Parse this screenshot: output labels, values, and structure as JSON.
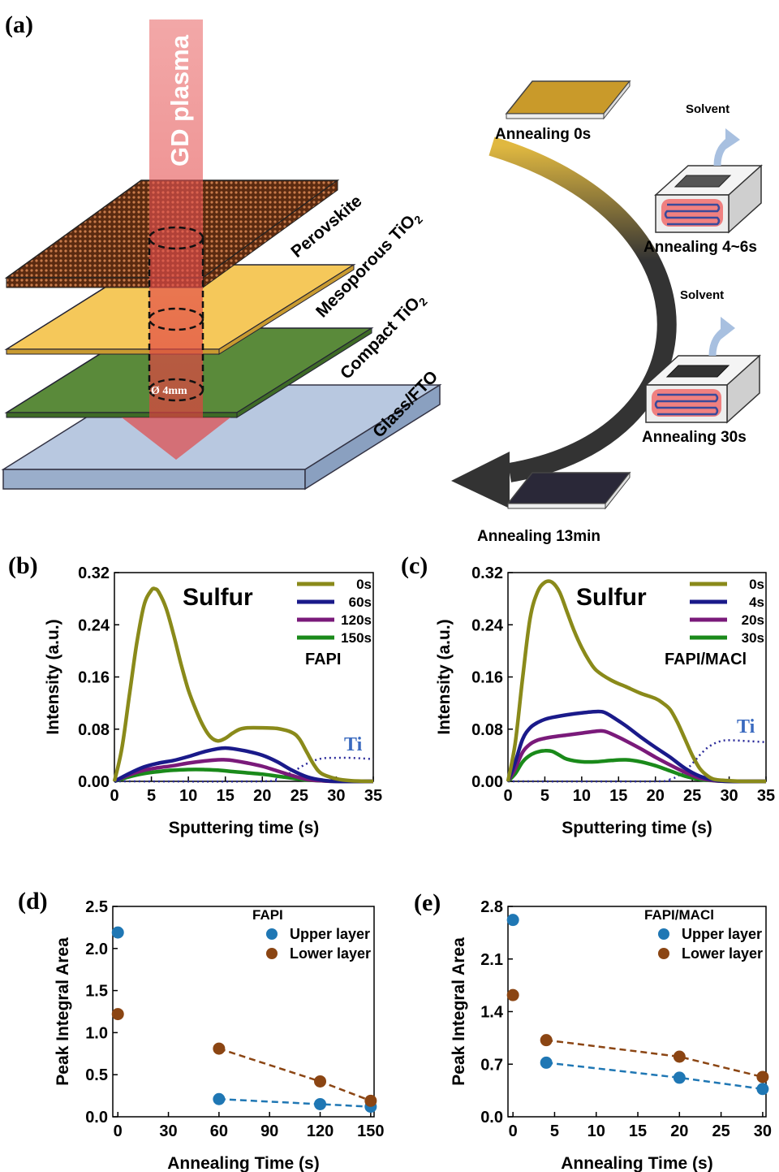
{
  "panel_a": {
    "label": "(a)",
    "plasma_label": "GD plasma",
    "diameter_label": "Ø 4mm",
    "layers": [
      "Perovskite",
      "Mesoporous TiO",
      "Compact TiO",
      "Glass/FTO"
    ],
    "layer_subscripts": [
      "",
      "2",
      "2",
      ""
    ],
    "stages": [
      "Annealing 0s",
      "Annealing 4~6s",
      "Annealing 30s",
      "Annealing 13min"
    ],
    "solvent_label": "Solvent",
    "colors": {
      "plasma": "#e05050",
      "perovskite": "#7a3d1c",
      "mesoporous": "#f5c85a",
      "compact": "#5a8a3a",
      "glass": "#b8c8e0"
    }
  },
  "chart_data": [
    {
      "id": "b",
      "label": "(b)",
      "type": "line",
      "title": "Sulfur",
      "subtitle": "FAPI",
      "xlabel": "Sputtering time (s)",
      "ylabel": "Intensity (a.u.)",
      "xlim": [
        0,
        35
      ],
      "ylim": [
        0,
        0.32
      ],
      "xticks": [
        "0",
        "5",
        "10",
        "15",
        "20",
        "25",
        "30",
        "35"
      ],
      "yticks": [
        "0.00",
        "0.08",
        "0.16",
        "0.24",
        "0.32"
      ],
      "legend_position": "top-right",
      "series": [
        {
          "name": "0s",
          "color": "#8a8a1a",
          "x": [
            0,
            1,
            2,
            3,
            4,
            5,
            5.5,
            6,
            7,
            8,
            9,
            10,
            11,
            12,
            13,
            14,
            15,
            16,
            17,
            18,
            20,
            22,
            24,
            25,
            26,
            27,
            28,
            30,
            32,
            35
          ],
          "y": [
            0.0,
            0.05,
            0.13,
            0.21,
            0.27,
            0.293,
            0.295,
            0.29,
            0.265,
            0.225,
            0.18,
            0.14,
            0.11,
            0.085,
            0.068,
            0.062,
            0.066,
            0.074,
            0.08,
            0.082,
            0.082,
            0.081,
            0.075,
            0.065,
            0.045,
            0.025,
            0.012,
            0.004,
            0.001,
            0.0
          ]
        },
        {
          "name": "60s",
          "color": "#1a1a8a",
          "x": [
            0,
            2,
            4,
            6,
            8,
            10,
            12,
            14,
            15,
            16,
            18,
            20,
            22,
            24,
            26,
            28,
            30,
            35
          ],
          "y": [
            0.0,
            0.012,
            0.022,
            0.028,
            0.032,
            0.038,
            0.045,
            0.05,
            0.051,
            0.05,
            0.046,
            0.04,
            0.03,
            0.017,
            0.007,
            0.002,
            0.0,
            0.0
          ]
        },
        {
          "name": "120s",
          "color": "#7a1a7a",
          "x": [
            0,
            2,
            4,
            6,
            8,
            10,
            12,
            14,
            15,
            16,
            18,
            20,
            22,
            24,
            26,
            28,
            30,
            35
          ],
          "y": [
            0.0,
            0.01,
            0.017,
            0.021,
            0.024,
            0.028,
            0.031,
            0.033,
            0.033,
            0.032,
            0.028,
            0.023,
            0.016,
            0.009,
            0.003,
            0.001,
            0.0,
            0.0
          ]
        },
        {
          "name": "150s",
          "color": "#1a8a1a",
          "x": [
            0,
            2,
            4,
            6,
            8,
            10,
            12,
            14,
            16,
            18,
            20,
            22,
            24,
            26,
            28,
            30,
            35
          ],
          "y": [
            0.0,
            0.007,
            0.012,
            0.015,
            0.017,
            0.018,
            0.018,
            0.017,
            0.015,
            0.013,
            0.011,
            0.008,
            0.005,
            0.002,
            0.001,
            0.0,
            0.0
          ]
        }
      ],
      "ti_curve": {
        "label": "Ti",
        "color": "#3a6abf",
        "x": [
          0,
          20,
          22,
          24,
          26,
          28,
          30,
          32,
          35
        ],
        "y": [
          0.0,
          0.0,
          0.004,
          0.014,
          0.027,
          0.035,
          0.036,
          0.036,
          0.034
        ]
      }
    },
    {
      "id": "c",
      "label": "(c)",
      "type": "line",
      "title": "Sulfur",
      "subtitle": "FAPI/MACl",
      "xlabel": "Sputtering time (s)",
      "ylabel": "Intensity (a.u.)",
      "xlim": [
        0,
        35
      ],
      "ylim": [
        0,
        0.32
      ],
      "xticks": [
        "0",
        "5",
        "10",
        "15",
        "20",
        "25",
        "30",
        "35"
      ],
      "yticks": [
        "0.00",
        "0.08",
        "0.16",
        "0.24",
        "0.32"
      ],
      "legend_position": "top-right",
      "series": [
        {
          "name": "0s",
          "color": "#8a8a1a",
          "x": [
            0,
            1,
            2,
            3,
            4,
            5,
            6,
            7,
            8,
            9,
            10,
            11,
            12,
            14,
            16,
            18,
            20,
            21,
            22,
            23,
            24,
            25,
            26,
            27,
            28,
            30,
            32,
            35
          ],
          "y": [
            0.0,
            0.06,
            0.16,
            0.25,
            0.29,
            0.305,
            0.305,
            0.29,
            0.26,
            0.23,
            0.205,
            0.185,
            0.17,
            0.155,
            0.145,
            0.135,
            0.127,
            0.12,
            0.11,
            0.09,
            0.065,
            0.04,
            0.02,
            0.009,
            0.003,
            0.001,
            0.0,
            0.0
          ]
        },
        {
          "name": "4s",
          "color": "#1a1a8a",
          "x": [
            0,
            1,
            2,
            3,
            4,
            5,
            6,
            8,
            10,
            12,
            13,
            14,
            16,
            18,
            20,
            22,
            24,
            26,
            28,
            30,
            35
          ],
          "y": [
            0.0,
            0.03,
            0.065,
            0.082,
            0.09,
            0.095,
            0.098,
            0.102,
            0.105,
            0.107,
            0.106,
            0.1,
            0.085,
            0.068,
            0.052,
            0.037,
            0.02,
            0.008,
            0.002,
            0.0,
            0.0
          ]
        },
        {
          "name": "20s",
          "color": "#7a1a7a",
          "x": [
            0,
            1,
            2,
            3,
            4,
            5,
            6,
            8,
            10,
            12,
            13,
            14,
            16,
            18,
            20,
            22,
            24,
            26,
            28,
            30,
            35
          ],
          "y": [
            0.0,
            0.02,
            0.045,
            0.057,
            0.063,
            0.066,
            0.068,
            0.071,
            0.074,
            0.077,
            0.077,
            0.073,
            0.062,
            0.05,
            0.037,
            0.025,
            0.014,
            0.005,
            0.001,
            0.0,
            0.0
          ]
        },
        {
          "name": "30s",
          "color": "#1a8a1a",
          "x": [
            0,
            1,
            2,
            3,
            4,
            5,
            6,
            7,
            8,
            10,
            12,
            14,
            16,
            18,
            20,
            22,
            24,
            26,
            28,
            30,
            35
          ],
          "y": [
            0.0,
            0.012,
            0.03,
            0.04,
            0.045,
            0.047,
            0.046,
            0.04,
            0.034,
            0.03,
            0.03,
            0.032,
            0.033,
            0.03,
            0.024,
            0.016,
            0.008,
            0.003,
            0.001,
            0.0,
            0.0
          ]
        }
      ],
      "ti_curve": {
        "label": "Ti",
        "color": "#3a6abf",
        "x": [
          0,
          20,
          22,
          23,
          24,
          25,
          26,
          27,
          28,
          29,
          30,
          32,
          35
        ],
        "y": [
          0.0,
          0.0,
          0.003,
          0.008,
          0.016,
          0.027,
          0.04,
          0.051,
          0.058,
          0.062,
          0.063,
          0.062,
          0.06
        ]
      }
    },
    {
      "id": "d",
      "label": "(d)",
      "type": "scatter",
      "subtitle": "FAPI",
      "xlabel": "Annealing Time (s)",
      "ylabel": "Peak Integral Area",
      "xlim": [
        -3,
        152
      ],
      "ylim": [
        0,
        2.5
      ],
      "xticks": [
        "0",
        "30",
        "60",
        "90",
        "120",
        "150"
      ],
      "xtick_values": [
        0,
        30,
        60,
        90,
        120,
        150
      ],
      "yticks": [
        "0.0",
        "0.5",
        "1.0",
        "1.5",
        "2.0",
        "2.5"
      ],
      "ytick_values": [
        0,
        0.5,
        1.0,
        1.5,
        2.0,
        2.5
      ],
      "legend_position": "top-right",
      "series": [
        {
          "name": "Upper layer",
          "color": "#1f77b4",
          "x": [
            0,
            60,
            120,
            150
          ],
          "y": [
            2.19,
            0.21,
            0.15,
            0.12
          ]
        },
        {
          "name": "Lower layer",
          "color": "#8b4513",
          "x": [
            0,
            60,
            120,
            150
          ],
          "y": [
            1.22,
            0.81,
            0.42,
            0.19
          ]
        }
      ],
      "trend_from_index": 1
    },
    {
      "id": "e",
      "label": "(e)",
      "type": "scatter",
      "subtitle": "FAPI/MACl",
      "xlabel": "Annealing Time (s)",
      "ylabel": "Peak Integral Area",
      "xlim": [
        -0.6,
        30.4
      ],
      "ylim": [
        0,
        2.8
      ],
      "xticks": [
        "0",
        "5",
        "10",
        "15",
        "20",
        "25",
        "30"
      ],
      "xtick_values": [
        0,
        5,
        10,
        15,
        20,
        25,
        30
      ],
      "yticks": [
        "0.0",
        "0.7",
        "1.4",
        "2.1",
        "2.8"
      ],
      "ytick_values": [
        0,
        0.7,
        1.4,
        2.1,
        2.8
      ],
      "legend_position": "top-right",
      "series": [
        {
          "name": "Upper layer",
          "color": "#1f77b4",
          "x": [
            0,
            4,
            20,
            30
          ],
          "y": [
            2.62,
            0.72,
            0.52,
            0.37
          ]
        },
        {
          "name": "Lower layer",
          "color": "#8b4513",
          "x": [
            0,
            4,
            20,
            30
          ],
          "y": [
            1.62,
            1.02,
            0.8,
            0.53
          ]
        }
      ],
      "trend_from_index": 1
    }
  ]
}
